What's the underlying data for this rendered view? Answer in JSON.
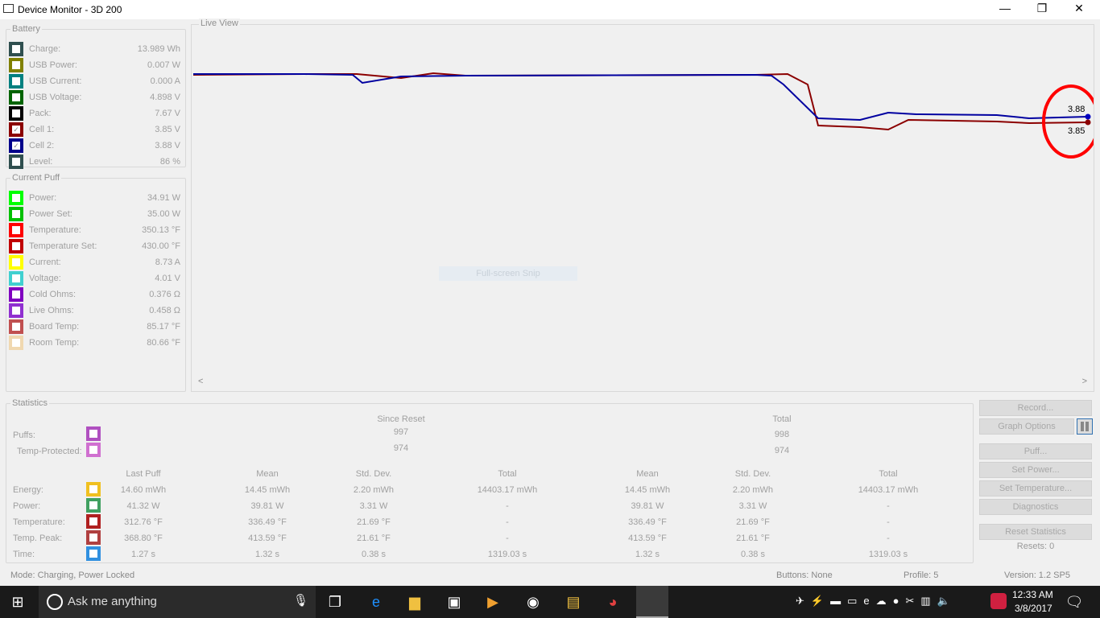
{
  "window": {
    "title": "Device Monitor - 3D 200",
    "minimize": "—",
    "restore": "❐",
    "close": "✕"
  },
  "battery": {
    "title": "Battery",
    "items": [
      {
        "label": "Charge:",
        "value": "13.989 Wh",
        "color": "#2f4f4f",
        "checked": false
      },
      {
        "label": "USB Power:",
        "value": "0.007 W",
        "color": "#808000",
        "checked": false
      },
      {
        "label": "USB Current:",
        "value": "0.000 A",
        "color": "#008080",
        "checked": false
      },
      {
        "label": "USB Voltage:",
        "value": "4.898 V",
        "color": "#006400",
        "checked": false
      },
      {
        "label": "Pack:",
        "value": "7.67 V",
        "color": "#000000",
        "checked": false
      },
      {
        "label": "Cell 1:",
        "value": "3.85 V",
        "color": "#8b0000",
        "checked": true
      },
      {
        "label": "Cell 2:",
        "value": "3.88 V",
        "color": "#00008b",
        "checked": true
      },
      {
        "label": "Level:",
        "value": "86 %",
        "color": "#2f4f4f",
        "checked": false
      }
    ]
  },
  "puff": {
    "title": "Current Puff",
    "items": [
      {
        "label": "Power:",
        "value": "34.91 W",
        "color": "#00ff00"
      },
      {
        "label": "Power Set:",
        "value": "35.00 W",
        "color": "#00c000"
      },
      {
        "label": "Temperature:",
        "value": "350.13 °F",
        "color": "#ff0000"
      },
      {
        "label": "Temperature Set:",
        "value": "430.00 °F",
        "color": "#c00000"
      },
      {
        "label": "Current:",
        "value": "8.73 A",
        "color": "#ffff00"
      },
      {
        "label": "Voltage:",
        "value": "4.01 V",
        "color": "#40d0d0"
      },
      {
        "label": "Cold Ohms:",
        "value": "0.376 Ω",
        "color": "#8000c0"
      },
      {
        "label": "Live Ohms:",
        "value": "0.458 Ω",
        "color": "#9030d0"
      },
      {
        "label": "Board Temp:",
        "value": "85.17 °F",
        "color": "#c05050"
      },
      {
        "label": "Room Temp:",
        "value": "80.66 °F",
        "color": "#f0d8b0"
      }
    ]
  },
  "live_view": {
    "title": "Live View",
    "cell2_label": "3.88",
    "cell1_label": "3.85",
    "snip_text": "Full-screen Snip",
    "scroll_left": "<",
    "scroll_right": ">"
  },
  "statistics": {
    "title": "Statistics",
    "since_reset": "Since Reset",
    "total": "Total",
    "puffs": {
      "label": "Puffs:",
      "since": "997",
      "total": "998",
      "color": "#b050c0"
    },
    "temp_protected": {
      "label": "Temp-Protected:",
      "since": "974",
      "total": "974",
      "color": "#d070d0"
    },
    "columns": [
      "Last Puff",
      "Mean",
      "Std. Dev.",
      "Total",
      "Mean",
      "Std. Dev.",
      "Total"
    ],
    "rows": [
      {
        "label": "Energy:",
        "color": "#f0c020",
        "values": [
          "14.60 mWh",
          "14.45 mWh",
          "2.20 mWh",
          "14403.17 mWh",
          "14.45 mWh",
          "2.20 mWh",
          "14403.17 mWh"
        ]
      },
      {
        "label": "Power:",
        "color": "#40a060",
        "values": [
          "41.32 W",
          "39.81 W",
          "3.31 W",
          "-",
          "39.81 W",
          "3.31 W",
          "-"
        ]
      },
      {
        "label": "Temperature:",
        "color": "#b02020",
        "values": [
          "312.76 °F",
          "336.49 °F",
          "21.69 °F",
          "-",
          "336.49 °F",
          "21.69 °F",
          "-"
        ]
      },
      {
        "label": "Temp. Peak:",
        "color": "#b04040",
        "values": [
          "368.80 °F",
          "413.59 °F",
          "21.61 °F",
          "-",
          "413.59 °F",
          "21.61 °F",
          "-"
        ]
      },
      {
        "label": "Time:",
        "color": "#3090e0",
        "values": [
          "1.27 s",
          "1.32 s",
          "0.38 s",
          "1319.03 s",
          "1.32 s",
          "0.38 s",
          "1319.03 s"
        ]
      }
    ]
  },
  "buttons": {
    "record": "Record...",
    "graph_options": "Graph Options",
    "puff": "Puff...",
    "set_power": "Set Power...",
    "set_temperature": "Set Temperature...",
    "diagnostics": "Diagnostics",
    "reset_statistics": "Reset Statistics",
    "resets": "Resets: 0"
  },
  "status": {
    "mode": "Mode: Charging, Power Locked",
    "buttons": "Buttons: None",
    "profile": "Profile: 5",
    "version": "Version: 1.2 SP5"
  },
  "taskbar": {
    "search_placeholder": "Ask me anything",
    "time": "12:33 AM",
    "date": "3/8/2017"
  }
}
